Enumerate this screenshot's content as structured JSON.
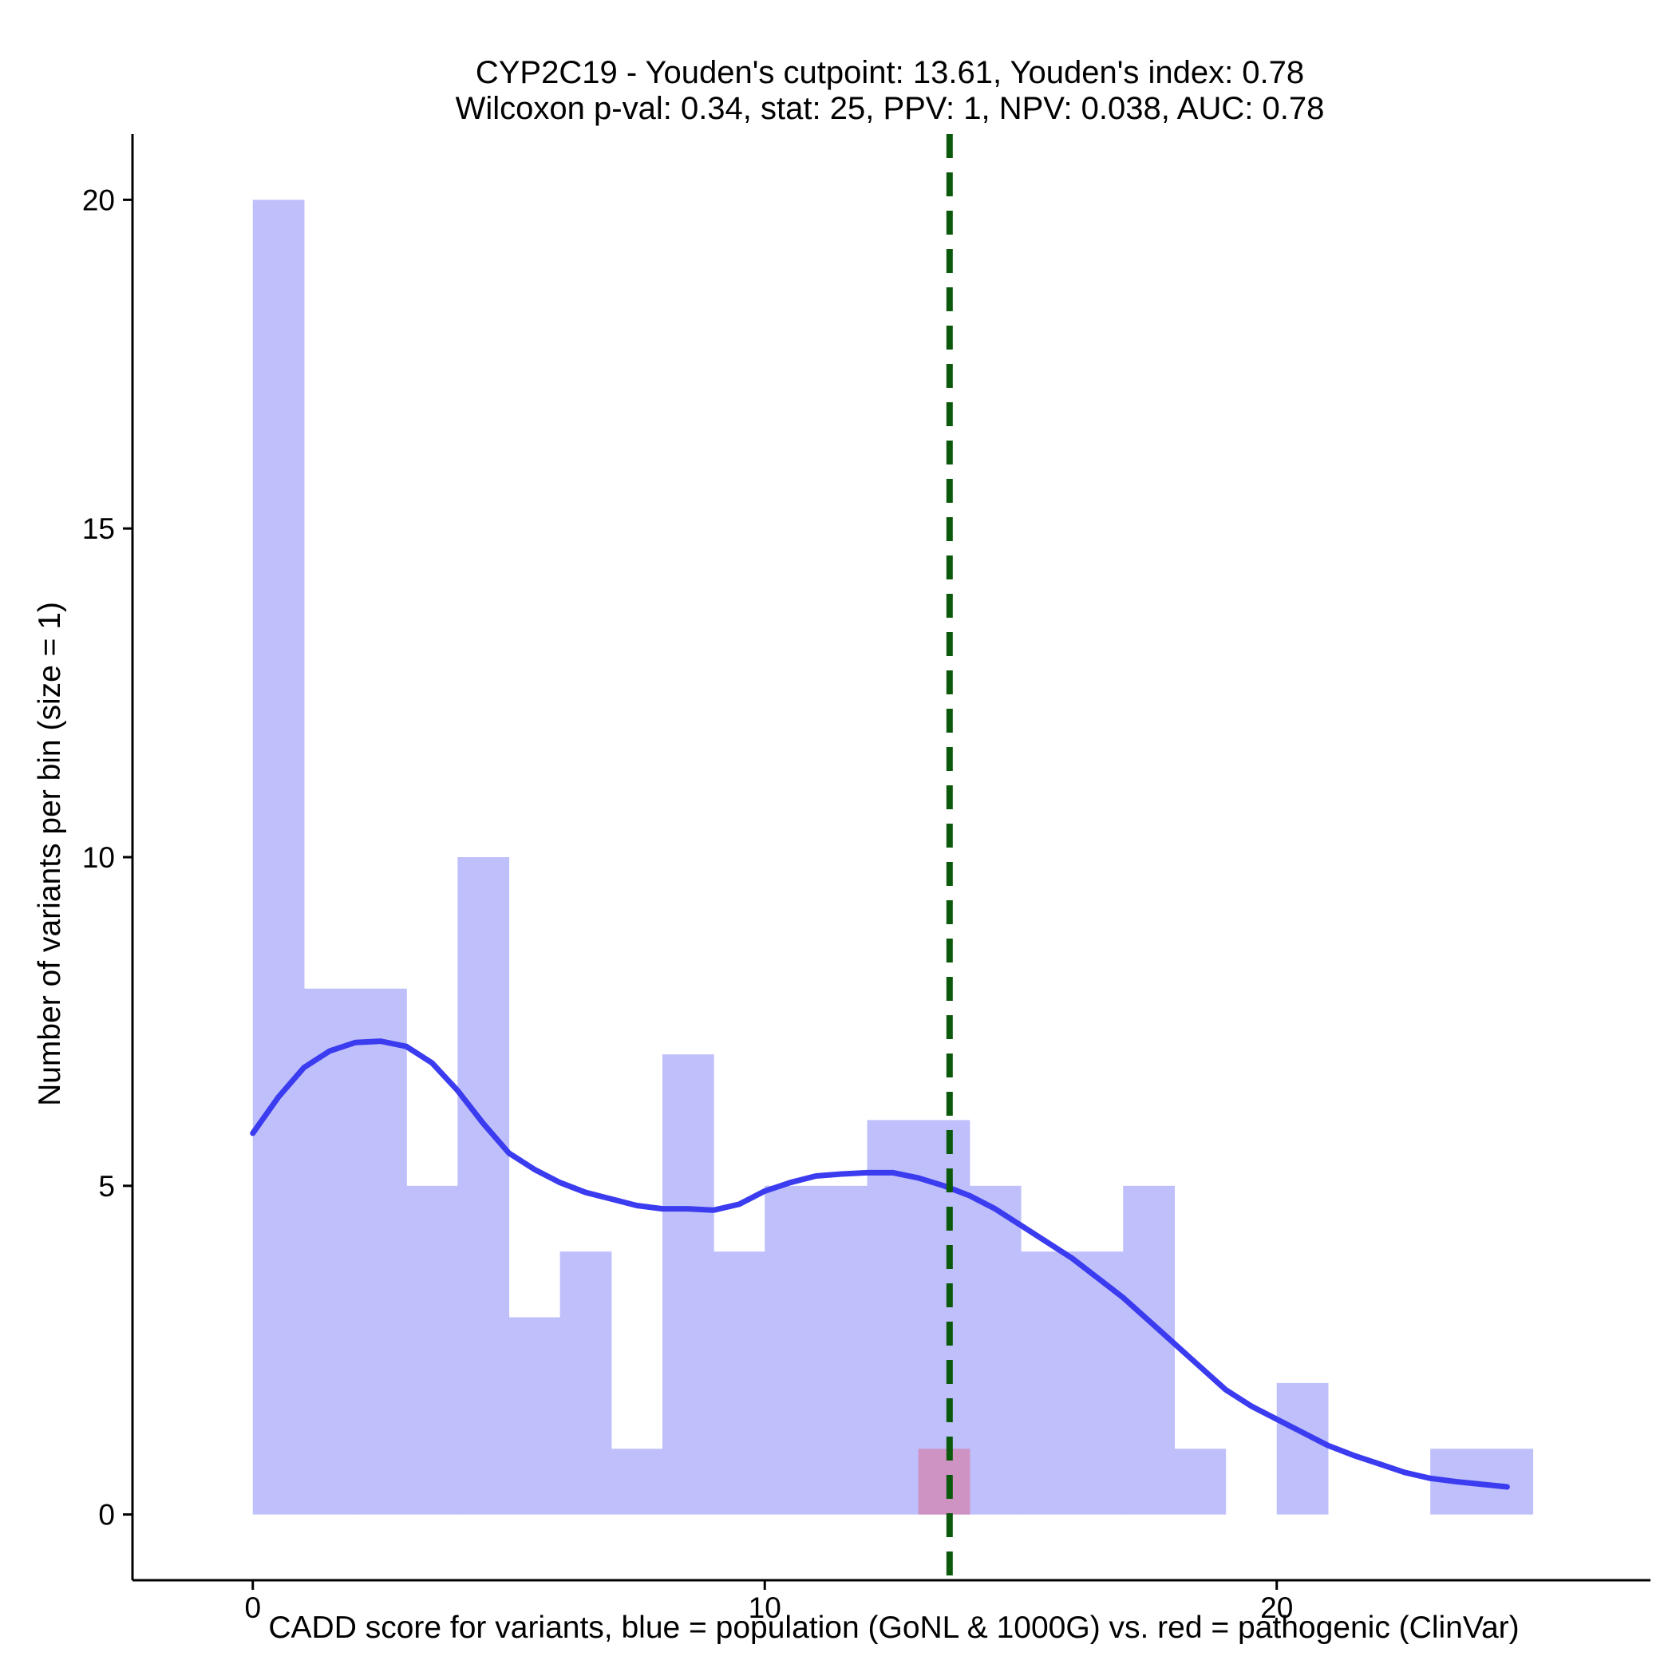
{
  "chart_data": {
    "type": "bar",
    "title_line1": "CYP2C19 - Youden's cutpoint: 13.61, Youden's index: 0.78",
    "title_line2": "Wilcoxon p-val: 0.34, stat: 25, PPV: 1, NPV: 0.038, AUC: 0.78",
    "xlabel": "CADD score for variants, blue = population (GoNL & 1000G) vs. red = pathogenic (ClinVar)",
    "ylabel": "Number of variants per bin (size = 1)",
    "xlim": [
      -2.35,
      27.3
    ],
    "ylim": [
      -1,
      21
    ],
    "x_ticks": [
      0,
      10,
      20
    ],
    "y_ticks": [
      0,
      5,
      10,
      15,
      20
    ],
    "bin_width": 1,
    "grid": false,
    "legend": "none",
    "series": [
      {
        "name": "population (GoNL & 1000G)",
        "color": "#bfbffb",
        "bins": [
          {
            "start": 0,
            "count": 20
          },
          {
            "start": 1,
            "count": 8
          },
          {
            "start": 2,
            "count": 8
          },
          {
            "start": 3,
            "count": 5
          },
          {
            "start": 4,
            "count": 10
          },
          {
            "start": 5,
            "count": 3
          },
          {
            "start": 6,
            "count": 4
          },
          {
            "start": 7,
            "count": 1
          },
          {
            "start": 8,
            "count": 7
          },
          {
            "start": 9,
            "count": 4
          },
          {
            "start": 10,
            "count": 5
          },
          {
            "start": 11,
            "count": 5
          },
          {
            "start": 12,
            "count": 6
          },
          {
            "start": 13,
            "count": 6
          },
          {
            "start": 14,
            "count": 5
          },
          {
            "start": 15,
            "count": 4
          },
          {
            "start": 16,
            "count": 4
          },
          {
            "start": 17,
            "count": 5
          },
          {
            "start": 18,
            "count": 1
          },
          {
            "start": 19,
            "count": 0
          },
          {
            "start": 20,
            "count": 2
          },
          {
            "start": 21,
            "count": 0
          },
          {
            "start": 22,
            "count": 0
          },
          {
            "start": 23,
            "count": 1
          },
          {
            "start": 24,
            "count": 1
          }
        ]
      },
      {
        "name": "pathogenic (ClinVar)",
        "color": "#cf93c3",
        "bins": [
          {
            "start": 13,
            "count": 1
          }
        ]
      }
    ],
    "density": {
      "color": "#3b3bf0",
      "points": [
        [
          0.0,
          5.8
        ],
        [
          0.5,
          6.35
        ],
        [
          1.0,
          6.8
        ],
        [
          1.5,
          7.05
        ],
        [
          2.0,
          7.18
        ],
        [
          2.5,
          7.2
        ],
        [
          3.0,
          7.12
        ],
        [
          3.5,
          6.87
        ],
        [
          4.0,
          6.45
        ],
        [
          4.5,
          5.95
        ],
        [
          5.0,
          5.5
        ],
        [
          5.5,
          5.25
        ],
        [
          6.0,
          5.05
        ],
        [
          6.5,
          4.9
        ],
        [
          7.0,
          4.8
        ],
        [
          7.5,
          4.7
        ],
        [
          8.0,
          4.65
        ],
        [
          8.5,
          4.65
        ],
        [
          9.0,
          4.63
        ],
        [
          9.5,
          4.72
        ],
        [
          10.0,
          4.92
        ],
        [
          10.5,
          5.05
        ],
        [
          11.0,
          5.15
        ],
        [
          11.5,
          5.18
        ],
        [
          12.0,
          5.2
        ],
        [
          12.5,
          5.2
        ],
        [
          13.0,
          5.12
        ],
        [
          13.5,
          5.0
        ],
        [
          14.0,
          4.85
        ],
        [
          14.5,
          4.65
        ],
        [
          15.0,
          4.4
        ],
        [
          15.5,
          4.15
        ],
        [
          16.0,
          3.9
        ],
        [
          16.5,
          3.6
        ],
        [
          17.0,
          3.3
        ],
        [
          17.5,
          2.95
        ],
        [
          18.0,
          2.6
        ],
        [
          18.5,
          2.25
        ],
        [
          19.0,
          1.9
        ],
        [
          19.5,
          1.65
        ],
        [
          20.0,
          1.45
        ],
        [
          20.5,
          1.25
        ],
        [
          21.0,
          1.05
        ],
        [
          21.5,
          0.9
        ],
        [
          22.0,
          0.77
        ],
        [
          22.5,
          0.64
        ],
        [
          23.0,
          0.55
        ],
        [
          23.5,
          0.5
        ],
        [
          24.0,
          0.46
        ],
        [
          24.5,
          0.42
        ]
      ]
    },
    "cutpoint": {
      "value": 13.61,
      "color": "#0b5a0b",
      "style": "dashed"
    }
  }
}
